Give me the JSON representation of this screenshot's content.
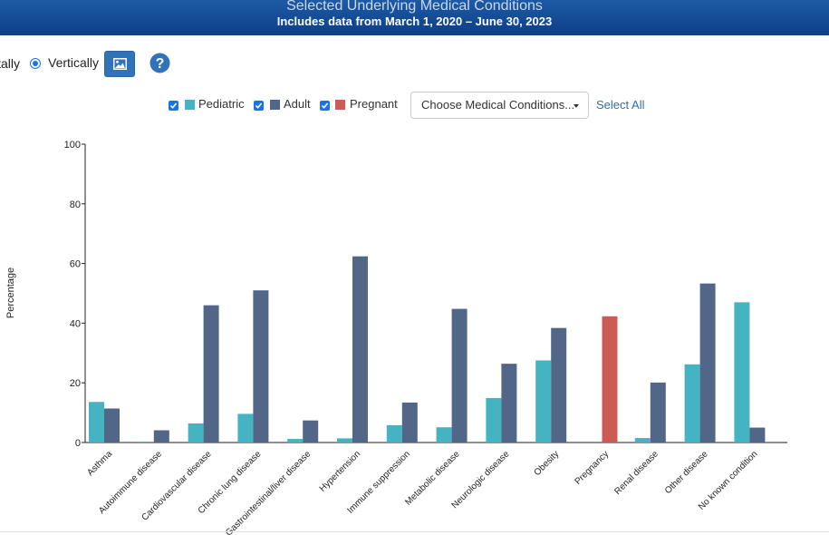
{
  "header": {
    "title": "Selected Underlying Medical Conditions",
    "subtitle": "Includes data from March 1, 2020 – June 30, 2023"
  },
  "controls": {
    "horizontal_label": "tally",
    "vertical_label": "Vertically",
    "image_button_icon": "image-icon",
    "help_icon": "question-icon"
  },
  "legend": {
    "pediatric": "Pediatric",
    "adult": "Adult",
    "pregnant": "Pregnant",
    "dropdown_label": "Choose Medical Conditions...",
    "select_all": "Select All"
  },
  "colors": {
    "pediatric": "#44b3c2",
    "adult": "#526688",
    "pregnant": "#cd5b55",
    "header": "#0d3f86"
  },
  "chart_data": {
    "type": "bar",
    "title": "Selected Underlying Medical Conditions",
    "xlabel": "",
    "ylabel": "Percentage",
    "ylim": [
      0,
      100
    ],
    "yticks": [
      0,
      20,
      40,
      60,
      80,
      100
    ],
    "categories": [
      "Asthma",
      "Autoimmune disease",
      "Cardiovascular disease",
      "Chronic lung disease",
      "Gastrointestinal/liver disease",
      "Hypertension",
      "Immune suppression",
      "Metabolic disease",
      "Neurologic disease",
      "Obesity",
      "Pregnancy",
      "Renal disease",
      "Other disease",
      "No known condition"
    ],
    "series": [
      {
        "name": "Pediatric",
        "color": "#44b3c2",
        "values": [
          13.6,
          0.3,
          6.4,
          9.6,
          1.2,
          1.4,
          5.8,
          5.1,
          14.9,
          27.5,
          null,
          1.5,
          26.2,
          47.0
        ]
      },
      {
        "name": "Adult",
        "color": "#526688",
        "values": [
          11.4,
          4.1,
          46.0,
          51.0,
          7.4,
          62.4,
          13.4,
          44.8,
          26.4,
          38.4,
          null,
          20.1,
          53.3,
          5.0
        ]
      },
      {
        "name": "Pregnant",
        "color": "#cd5b55",
        "values": [
          null,
          null,
          null,
          null,
          null,
          null,
          null,
          null,
          null,
          null,
          42.3,
          null,
          null,
          null
        ]
      }
    ]
  }
}
